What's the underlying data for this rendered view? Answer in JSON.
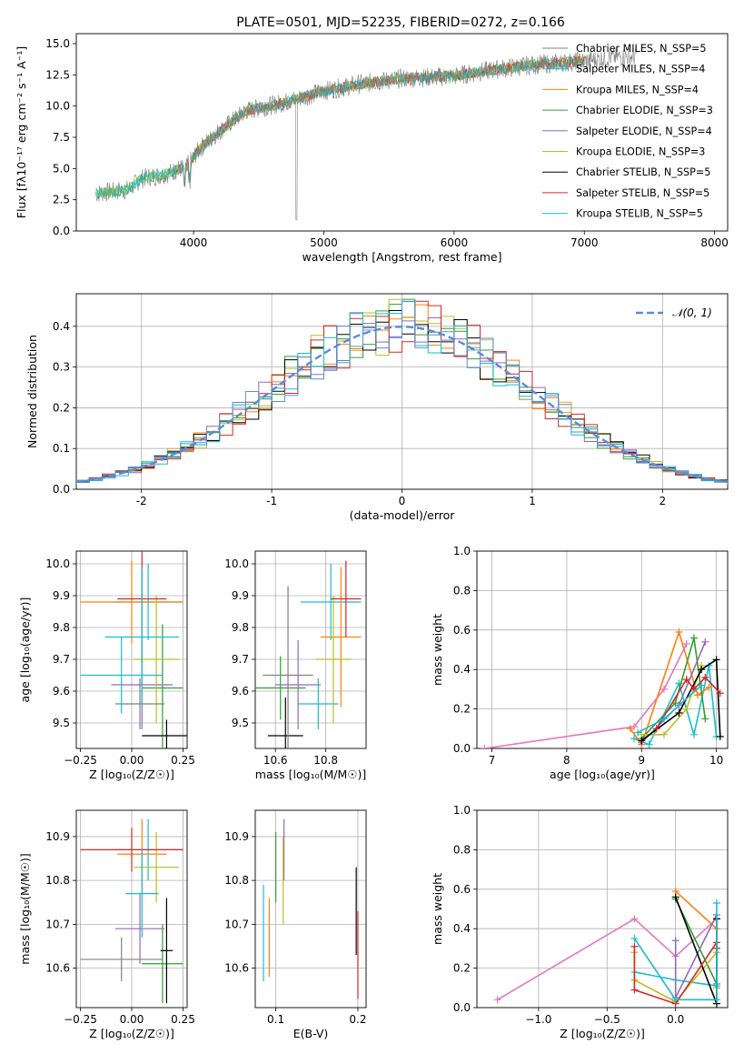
{
  "figure": {
    "title": "PLATE=0501, MJD=52235, FIBERID=0272, z=0.166"
  },
  "colors": {
    "fits": [
      "#808080",
      "#17becf",
      "#ff7f0e",
      "#2ca02c",
      "#9467bd",
      "#bcbd22",
      "#000000",
      "#d62728",
      "#17becf"
    ],
    "normal_curve": "#5b8bd6"
  },
  "chart_data": [
    {
      "id": "spectrum",
      "type": "line",
      "xlabel": "wavelength [Angstrom, rest frame]",
      "ylabel": "Flux [fλ10⁻¹⁷ erg cm⁻² s⁻¹ A⁻¹]",
      "xlim": [
        3100,
        8100
      ],
      "ylim": [
        0,
        15.8
      ],
      "xticks": [
        4000,
        5000,
        6000,
        7000,
        8000
      ],
      "yticks": [
        0.0,
        2.5,
        5.0,
        7.5,
        10.0,
        12.5,
        15.0
      ],
      "grid": false,
      "legend_position": "top-right",
      "legend": [
        "Chabrier MILES, N_SSP=5",
        "Salpeter MILES, N_SSP=4",
        "Kroupa MILES, N_SSP=4",
        "Chabrier ELODIE, N_SSP=3",
        "Salpeter ELODIE, N_SSP=4",
        "Kroupa ELODIE, N_SSP=3",
        "Chabrier STELIB, N_SSP=5",
        "Salpeter STELIB, N_SSP=5",
        "Kroupa STELIB, N_SSP=5"
      ],
      "continuum": {
        "x": [
          3250,
          3500,
          3600,
          3800,
          3950,
          4050,
          4200,
          4400,
          4700,
          5000,
          5300,
          5600,
          6000,
          6300,
          6600,
          7000,
          7200,
          7400
        ],
        "y": [
          3.0,
          3.3,
          4.2,
          4.6,
          5.2,
          6.6,
          8.0,
          9.6,
          10.3,
          11.2,
          11.8,
          12.2,
          12.4,
          12.9,
          13.3,
          13.6,
          13.9,
          14.0
        ]
      },
      "observed_x_range": [
        3250,
        7400
      ],
      "model_x_range": [
        3850,
        7000
      ]
    },
    {
      "id": "residuals",
      "type": "histogram",
      "xlabel": "(data-model)/error",
      "ylabel": "Normed distribution",
      "xlim": [
        -2.5,
        2.5
      ],
      "ylim": [
        0,
        0.48
      ],
      "xticks": [
        -2,
        -1,
        0,
        1,
        2
      ],
      "yticks": [
        0.0,
        0.1,
        0.2,
        0.3,
        0.4
      ],
      "grid": true,
      "legend_position": "top-right",
      "legend": [
        "𝒩(0, 1)"
      ],
      "bin_width": 0.1
    },
    {
      "id": "age-vs-Z",
      "type": "errorbar",
      "xlabel": "Z [log₁₀(Z/Z☉)]",
      "ylabel": "age  [log₁₀(age/yr)]",
      "xlim": [
        -0.27,
        0.27
      ],
      "ylim": [
        9.42,
        10.04
      ],
      "xticks": [
        -0.25,
        0.0,
        0.25
      ],
      "xticklabels": [
        "−0.25",
        "0.00",
        "0.25"
      ],
      "yticks": [
        9.5,
        9.6,
        9.7,
        9.8,
        9.9,
        10.0
      ],
      "grid": true,
      "points": [
        {
          "x": 0.08,
          "y": 9.88,
          "xerr": 0.17,
          "yerr": 0.12
        },
        {
          "x": 0.0,
          "y": 9.88,
          "xerr": 0.25,
          "yerr": 0.13
        },
        {
          "x": 0.15,
          "y": 9.61,
          "xerr": 0.1,
          "yerr": 0.2
        },
        {
          "x": 0.05,
          "y": 9.62,
          "xerr": 0.15,
          "yerr": 0.14
        },
        {
          "x": 0.12,
          "y": 9.7,
          "xerr": 0.11,
          "yerr": 0.2
        },
        {
          "x": 0.17,
          "y": 9.46,
          "xerr": 0.12,
          "yerr": 0.05
        },
        {
          "x": 0.05,
          "y": 9.89,
          "xerr": 0.12,
          "yerr": 0.2
        },
        {
          "x": 0.05,
          "y": 9.77,
          "xerr": 0.18,
          "yerr": 0.22
        },
        {
          "x": 0.04,
          "y": 9.56,
          "xerr": 0.12,
          "yerr": 0.08
        },
        {
          "x": -0.05,
          "y": 9.65,
          "xerr": 0.2,
          "yerr": 0.12
        }
      ]
    },
    {
      "id": "age-vs-mass",
      "type": "errorbar",
      "xlabel": "mass [log₁₀(M/M☉)]",
      "ylabel": "",
      "xlim": [
        10.52,
        10.96
      ],
      "ylim": [
        9.42,
        10.04
      ],
      "xticks": [
        10.6,
        10.8
      ],
      "yticks": [
        9.5,
        9.6,
        9.7,
        9.8,
        9.9,
        10.0
      ],
      "grid": true,
      "points": [
        {
          "x": 10.82,
          "y": 9.88,
          "xerr": 0.12,
          "yerr": 0.12
        },
        {
          "x": 10.86,
          "y": 9.77,
          "xerr": 0.08,
          "yerr": 0.22
        },
        {
          "x": 10.62,
          "y": 9.61,
          "xerr": 0.1,
          "yerr": 0.1
        },
        {
          "x": 10.69,
          "y": 9.62,
          "xerr": 0.09,
          "yerr": 0.14
        },
        {
          "x": 10.83,
          "y": 9.7,
          "xerr": 0.07,
          "yerr": 0.2
        },
        {
          "x": 10.64,
          "y": 9.46,
          "xerr": 0.07,
          "yerr": 0.12
        },
        {
          "x": 10.88,
          "y": 9.89,
          "xerr": 0.06,
          "yerr": 0.12
        },
        {
          "x": 10.77,
          "y": 9.56,
          "xerr": 0.08,
          "yerr": 0.08
        },
        {
          "x": 10.65,
          "y": 9.65,
          "xerr": 0.1,
          "yerr": 0.28
        }
      ]
    },
    {
      "id": "weight-vs-age",
      "type": "line",
      "xlabel": "age  [log₁₀(age/yr)]",
      "ylabel": "mass weight",
      "xlim": [
        6.8,
        10.15
      ],
      "ylim": [
        0,
        1.0
      ],
      "xticks": [
        7,
        8,
        9,
        10
      ],
      "yticks": [
        0.0,
        0.2,
        0.4,
        0.6,
        0.8,
        1.0
      ],
      "grid": true,
      "series": [
        {
          "x": [
            6.9,
            8.9,
            9.3,
            9.6
          ],
          "y": [
            0.0,
            0.11,
            0.3,
            0.53
          ]
        },
        {
          "x": [
            8.9,
            9.1,
            9.5,
            9.7,
            9.9,
            10.0
          ],
          "y": [
            0.05,
            0.02,
            0.33,
            0.07,
            0.42,
            0.06
          ]
        },
        {
          "x": [
            8.85,
            9.0,
            9.5,
            9.75,
            9.9
          ],
          "y": [
            0.1,
            0.02,
            0.59,
            0.27,
            0.31
          ]
        },
        {
          "x": [
            9.0,
            9.45,
            9.7,
            9.85
          ],
          "y": [
            0.05,
            0.23,
            0.56,
            0.15
          ]
        },
        {
          "x": [
            9.0,
            9.5,
            9.85
          ],
          "y": [
            0.03,
            0.22,
            0.54
          ]
        },
        {
          "x": [
            9.0,
            9.3,
            9.6,
            9.8
          ],
          "y": [
            0.07,
            0.07,
            0.2,
            0.42
          ]
        },
        {
          "x": [
            9.0,
            9.5,
            9.8,
            10.0,
            10.05
          ],
          "y": [
            0.04,
            0.18,
            0.4,
            0.45,
            0.06
          ]
        },
        {
          "x": [
            9.2,
            9.6,
            9.7,
            9.85,
            10.05
          ],
          "y": [
            0.1,
            0.35,
            0.3,
            0.36,
            0.28
          ]
        },
        {
          "x": [
            8.95,
            9.3,
            9.8
          ],
          "y": [
            0.08,
            0.15,
            0.32
          ]
        }
      ]
    },
    {
      "id": "mass-vs-Z",
      "type": "errorbar",
      "xlabel": "Z [log₁₀(Z/Z☉)]",
      "ylabel": "mass [log₁₀(M/M☉)]",
      "xlim": [
        -0.27,
        0.27
      ],
      "ylim": [
        10.51,
        10.96
      ],
      "xticks": [
        -0.25,
        0.0,
        0.25
      ],
      "xticklabels": [
        "−0.25",
        "0.00",
        "0.25"
      ],
      "yticks": [
        10.6,
        10.7,
        10.8,
        10.9
      ],
      "grid": true,
      "points": [
        {
          "x": 0.08,
          "y": 10.87,
          "xerr": 0.17,
          "yerr": 0.07
        },
        {
          "x": 0.05,
          "y": 10.86,
          "xerr": 0.12,
          "yerr": 0.08
        },
        {
          "x": 0.15,
          "y": 10.61,
          "xerr": 0.1,
          "yerr": 0.09
        },
        {
          "x": 0.04,
          "y": 10.69,
          "xerr": 0.12,
          "yerr": 0.08
        },
        {
          "x": 0.12,
          "y": 10.83,
          "xerr": 0.11,
          "yerr": 0.08
        },
        {
          "x": 0.17,
          "y": 10.64,
          "xerr": 0.03,
          "yerr": 0.12
        },
        {
          "x": 0.0,
          "y": 10.87,
          "xerr": 0.25,
          "yerr": 0.05
        },
        {
          "x": 0.05,
          "y": 10.77,
          "xerr": 0.08,
          "yerr": 0.1
        },
        {
          "x": -0.05,
          "y": 10.62,
          "xerr": 0.2,
          "yerr": 0.05
        }
      ]
    },
    {
      "id": "mass-vs-ebv",
      "type": "errorbar",
      "xlabel": "E(B-V)",
      "ylabel": "",
      "xlim": [
        0.075,
        0.21
      ],
      "ylim": [
        10.51,
        10.96
      ],
      "xticks": [
        0.1,
        0.2
      ],
      "yticks": [
        10.6,
        10.7,
        10.8,
        10.9
      ],
      "grid": true,
      "points": [
        {
          "x": 0.085,
          "y": 10.68,
          "yerr": 0.11
        },
        {
          "x": 0.092,
          "y": 10.67,
          "yerr": 0.09
        },
        {
          "x": 0.1,
          "y": 10.83,
          "yerr": 0.08
        },
        {
          "x": 0.11,
          "y": 10.87,
          "yerr": 0.07
        },
        {
          "x": 0.109,
          "y": 10.8,
          "yerr": 0.1
        },
        {
          "x": 0.198,
          "y": 10.73,
          "yerr": 0.1
        },
        {
          "x": 0.2,
          "y": 10.63,
          "yerr": 0.1
        }
      ]
    },
    {
      "id": "weight-vs-Z",
      "type": "line",
      "xlabel": "Z [log₁₀(Z/Z☉)]",
      "ylabel": "mass weight",
      "xlim": [
        -1.45,
        0.38
      ],
      "ylim": [
        0,
        1.0
      ],
      "xticks": [
        -1.0,
        -0.5,
        0.0
      ],
      "xticklabels": [
        "−1.0",
        "−0.5",
        "0.0"
      ],
      "yticks": [
        0.0,
        0.2,
        0.4,
        0.6,
        0.8,
        1.0
      ],
      "grid": true,
      "series": [
        {
          "x": [
            -1.3,
            -0.3,
            0.0,
            0.3
          ],
          "y": [
            0.04,
            0.45,
            0.26,
            0.45
          ]
        },
        {
          "x": [
            -0.3,
            0.0,
            0.3
          ],
          "y": [
            0.18,
            0.14,
            0.11
          ]
        },
        {
          "x": [
            0.0,
            0.3,
            0.3
          ],
          "y": [
            0.59,
            0.4,
            0.1
          ]
        },
        {
          "x": [
            0.0,
            0.3,
            0.3
          ],
          "y": [
            0.55,
            0.12,
            0.3
          ]
        },
        {
          "x": [
            0.0,
            0.0,
            0.3
          ],
          "y": [
            0.34,
            0.05,
            0.47
          ]
        },
        {
          "x": [
            -0.3,
            -0.3,
            0.0,
            0.3
          ],
          "y": [
            0.28,
            0.14,
            0.03,
            0.28
          ]
        },
        {
          "x": [
            0.0,
            0.3,
            0.3
          ],
          "y": [
            0.56,
            0.02,
            0.45
          ]
        },
        {
          "x": [
            -0.3,
            -0.3,
            0.0,
            0.3,
            0.3
          ],
          "y": [
            0.31,
            0.09,
            0.02,
            0.33,
            0.3
          ]
        },
        {
          "x": [
            -0.3,
            0.0,
            0.3,
            0.3
          ],
          "y": [
            0.35,
            0.04,
            0.04,
            0.53
          ]
        }
      ]
    }
  ]
}
